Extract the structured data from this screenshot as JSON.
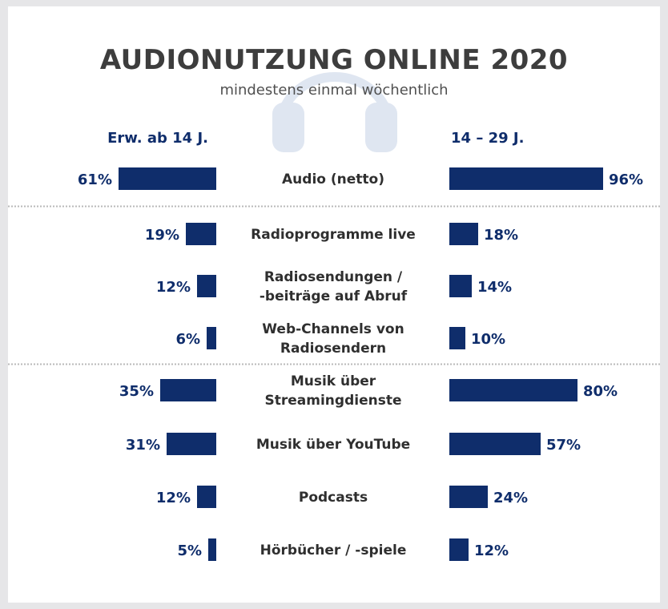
{
  "colors": {
    "bar": "#0f2d6b",
    "label": "#0f2d6b",
    "title": "#3d3d3d",
    "headphones_watermark": "#dfe6f1"
  },
  "icon": "headphones-icon",
  "chart_data": {
    "type": "bar",
    "orientation": "horizontal-butterfly",
    "title": "AUDIONUTZUNG ONLINE 2020",
    "subtitle": "mindestens einmal wöchentlich",
    "left_header": "Erw. ab 14 J.",
    "right_header": "14 – 29 J.",
    "categories": [
      [
        "Audio (netto)"
      ],
      [
        "Radioprogramme live"
      ],
      [
        "Radiosendungen /",
        "-beiträge auf Abruf"
      ],
      [
        "Web-Channels von",
        "Radiosendern"
      ],
      [
        "Musik über",
        "Streamingdienste"
      ],
      [
        "Musik über YouTube"
      ],
      [
        "Podcasts"
      ],
      [
        "Hörbücher / -spiele"
      ]
    ],
    "series": [
      {
        "name": "Erw. ab 14 J.",
        "values": [
          61,
          19,
          12,
          6,
          35,
          31,
          12,
          5
        ]
      },
      {
        "name": "14 – 29 J.",
        "values": [
          96,
          18,
          14,
          10,
          80,
          57,
          24,
          12
        ]
      }
    ],
    "value_suffix": "%",
    "dividers_after": [
      0,
      3
    ],
    "xlim": [
      0,
      100
    ]
  }
}
